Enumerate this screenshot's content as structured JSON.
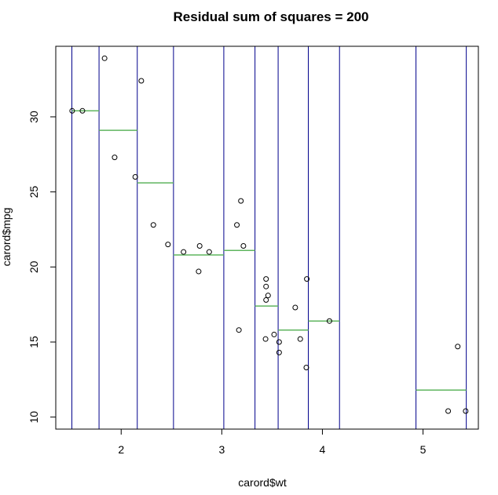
{
  "chart_data": {
    "type": "scatter",
    "title": "Residual sum of squares = 200",
    "xlabel": "carord$wt",
    "ylabel": "carord$mpg",
    "xlim": [
      1.35,
      5.55
    ],
    "ylim": [
      9.2,
      34.7
    ],
    "xticks": [
      2,
      3,
      4,
      5
    ],
    "yticks": [
      10,
      15,
      20,
      25,
      30
    ],
    "xtick_labels": [
      "2",
      "3",
      "4",
      "5"
    ],
    "ytick_labels": [
      "10",
      "15",
      "20",
      "25",
      "30"
    ],
    "grid": false,
    "colors": {
      "points": "#000000",
      "split_lines": "#00008b",
      "segments": "#5fb55f"
    },
    "points": [
      {
        "x": 1.513,
        "y": 30.4
      },
      {
        "x": 1.615,
        "y": 30.4
      },
      {
        "x": 1.835,
        "y": 33.9
      },
      {
        "x": 1.935,
        "y": 27.3
      },
      {
        "x": 2.14,
        "y": 26.0
      },
      {
        "x": 2.2,
        "y": 32.4
      },
      {
        "x": 2.32,
        "y": 22.8
      },
      {
        "x": 2.465,
        "y": 21.5
      },
      {
        "x": 2.62,
        "y": 21.0
      },
      {
        "x": 2.77,
        "y": 19.7
      },
      {
        "x": 2.78,
        "y": 21.4
      },
      {
        "x": 2.875,
        "y": 21.0
      },
      {
        "x": 3.15,
        "y": 22.8
      },
      {
        "x": 3.17,
        "y": 15.8
      },
      {
        "x": 3.19,
        "y": 24.4
      },
      {
        "x": 3.215,
        "y": 21.4
      },
      {
        "x": 3.435,
        "y": 15.2
      },
      {
        "x": 3.44,
        "y": 18.7
      },
      {
        "x": 3.44,
        "y": 19.2
      },
      {
        "x": 3.44,
        "y": 17.8
      },
      {
        "x": 3.46,
        "y": 18.1
      },
      {
        "x": 3.52,
        "y": 15.5
      },
      {
        "x": 3.57,
        "y": 15.0
      },
      {
        "x": 3.57,
        "y": 14.3
      },
      {
        "x": 3.73,
        "y": 17.3
      },
      {
        "x": 3.78,
        "y": 15.2
      },
      {
        "x": 3.84,
        "y": 13.3
      },
      {
        "x": 3.845,
        "y": 19.2
      },
      {
        "x": 4.07,
        "y": 16.4
      },
      {
        "x": 5.25,
        "y": 10.4
      },
      {
        "x": 5.345,
        "y": 14.7
      },
      {
        "x": 5.424,
        "y": 10.4
      }
    ],
    "splits": [
      1.51,
      1.78,
      2.16,
      2.52,
      3.02,
      3.33,
      3.56,
      3.86,
      4.17,
      4.93,
      5.43
    ],
    "segments": [
      {
        "x0": 1.51,
        "x1": 1.78,
        "y": 30.4
      },
      {
        "x0": 1.78,
        "x1": 2.16,
        "y": 29.1
      },
      {
        "x0": 2.16,
        "x1": 2.52,
        "y": 25.6
      },
      {
        "x0": 2.52,
        "x1": 3.02,
        "y": 20.8
      },
      {
        "x0": 3.02,
        "x1": 3.33,
        "y": 21.1
      },
      {
        "x0": 3.33,
        "x1": 3.56,
        "y": 17.4
      },
      {
        "x0": 3.56,
        "x1": 3.86,
        "y": 15.8
      },
      {
        "x0": 3.86,
        "x1": 4.17,
        "y": 16.4
      },
      {
        "x0": 4.93,
        "x1": 5.43,
        "y": 11.8
      }
    ]
  }
}
